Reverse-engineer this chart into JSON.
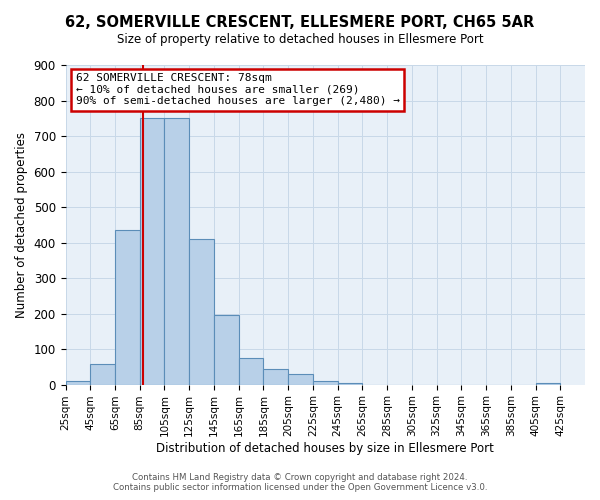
{
  "title": "62, SOMERVILLE CRESCENT, ELLESMERE PORT, CH65 5AR",
  "subtitle": "Size of property relative to detached houses in Ellesmere Port",
  "xlabel": "Distribution of detached houses by size in Ellesmere Port",
  "ylabel": "Number of detached properties",
  "bar_values": [
    10,
    57,
    436,
    750,
    750,
    410,
    197,
    75,
    45,
    30,
    10,
    5,
    0,
    0,
    0,
    0,
    0,
    0,
    0,
    5
  ],
  "bin_left_edges": [
    15,
    35,
    55,
    75,
    95,
    115,
    135,
    155,
    175,
    195,
    215,
    235,
    255,
    275,
    295,
    315,
    335,
    355,
    375,
    395
  ],
  "bin_width": 20,
  "tick_positions": [
    15,
    35,
    55,
    75,
    95,
    115,
    135,
    155,
    175,
    195,
    215,
    235,
    255,
    275,
    295,
    315,
    335,
    355,
    375,
    395,
    415
  ],
  "tick_labels": [
    "25sqm",
    "45sqm",
    "65sqm",
    "85sqm",
    "105sqm",
    "125sqm",
    "145sqm",
    "165sqm",
    "185sqm",
    "205sqm",
    "225sqm",
    "245sqm",
    "265sqm",
    "285sqm",
    "305sqm",
    "325sqm",
    "345sqm",
    "365sqm",
    "385sqm",
    "405sqm",
    "425sqm"
  ],
  "bar_color": "#b8d0e8",
  "bar_edge_color": "#5b8db8",
  "vline_x": 78,
  "vline_color": "#cc0000",
  "xlim": [
    15,
    435
  ],
  "ylim": [
    0,
    900
  ],
  "yticks": [
    0,
    100,
    200,
    300,
    400,
    500,
    600,
    700,
    800,
    900
  ],
  "annotation_title": "62 SOMERVILLE CRESCENT: 78sqm",
  "annotation_line1": "← 10% of detached houses are smaller (269)",
  "annotation_line2": "90% of semi-detached houses are larger (2,480) →",
  "annotation_box_facecolor": "#ffffff",
  "annotation_box_edgecolor": "#cc0000",
  "footer1": "Contains HM Land Registry data © Crown copyright and database right 2024.",
  "footer2": "Contains public sector information licensed under the Open Government Licence v3.0.",
  "bg_color": "#e8f0f8"
}
